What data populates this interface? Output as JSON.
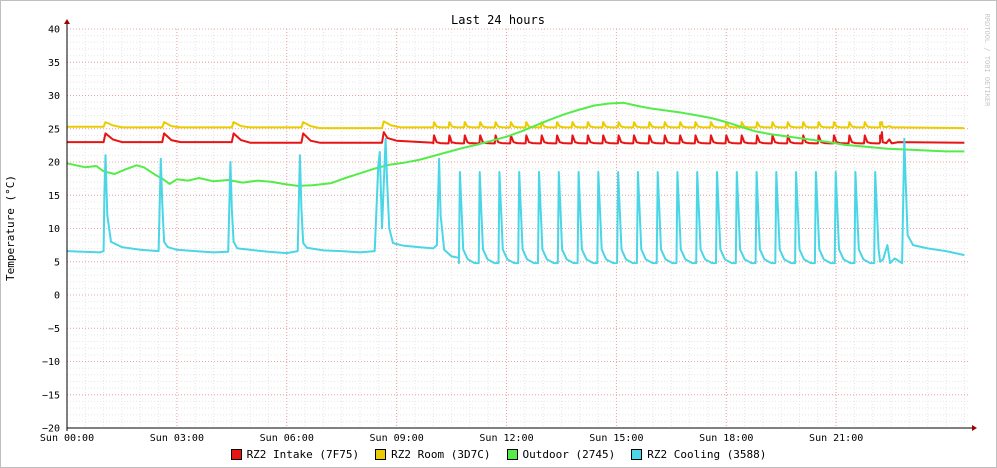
{
  "chart_data": {
    "type": "line",
    "title": "Last 24 hours",
    "ylabel": "Temperature (°C)",
    "watermark": "RRDTOOL / TOBI OETIKER",
    "ylim": [
      -20,
      40
    ],
    "yticks": [
      -20,
      -15,
      -10,
      -5,
      0,
      5,
      10,
      15,
      20,
      25,
      30,
      35,
      40
    ],
    "xlim": [
      0,
      24.6
    ],
    "xticks": [
      {
        "value": 0,
        "label": "Sun 00:00"
      },
      {
        "value": 3,
        "label": "Sun 03:00"
      },
      {
        "value": 6,
        "label": "Sun 06:00"
      },
      {
        "value": 9,
        "label": "Sun 09:00"
      },
      {
        "value": 12,
        "label": "Sun 12:00"
      },
      {
        "value": 15,
        "label": "Sun 15:00"
      },
      {
        "value": 18,
        "label": "Sun 18:00"
      },
      {
        "value": 21,
        "label": "Sun 21:00"
      }
    ],
    "grid": true,
    "legend_position": "bottom",
    "series": [
      {
        "name": "RZ2 Intake (7F75)",
        "color": "#e81313",
        "x": [
          0,
          1.0,
          1.05,
          1.25,
          1.5,
          2.6,
          2.65,
          2.85,
          3.1,
          4.5,
          4.55,
          4.75,
          5.0,
          6.4,
          6.45,
          6.65,
          6.9,
          8.6,
          8.65,
          8.75,
          9.0,
          10.0,
          10.5,
          11.0
        ],
        "values": [
          23.0,
          23.0,
          24.3,
          23.4,
          23.0,
          23.0,
          24.3,
          23.3,
          23.0,
          23.0,
          24.3,
          23.3,
          22.9,
          22.9,
          24.3,
          23.2,
          22.9,
          22.9,
          24.5,
          23.6,
          23.2,
          22.9,
          22.9,
          22.8
        ],
        "cycle": {
          "from": 10.0,
          "to": 22.2,
          "period": 0.42,
          "base": 22.8,
          "peak": 24.0
        },
        "tail": {
          "x": [
            22.2,
            22.25,
            22.45,
            22.7,
            24.5
          ],
          "values": [
            23.0,
            24.5,
            23.4,
            23.0,
            22.9
          ]
        }
      },
      {
        "name": "RZ2 Room (3D7C)",
        "color": "#eacc00",
        "x": [
          0,
          1.0,
          1.05,
          1.25,
          1.5,
          2.6,
          2.65,
          2.85,
          3.1,
          4.5,
          4.55,
          4.75,
          5.0,
          6.4,
          6.45,
          6.65,
          6.9,
          8.6,
          8.65,
          8.85,
          9.1,
          10.0
        ],
        "values": [
          25.3,
          25.3,
          26.0,
          25.5,
          25.2,
          25.2,
          26.0,
          25.4,
          25.2,
          25.2,
          26.0,
          25.4,
          25.2,
          25.2,
          26.0,
          25.4,
          25.1,
          25.1,
          26.1,
          25.5,
          25.2,
          25.2
        ],
        "cycle": {
          "from": 10.0,
          "to": 22.2,
          "period": 0.42,
          "base": 25.2,
          "peak": 26.0
        },
        "tail": {
          "x": [
            22.2,
            22.25,
            22.45,
            22.7,
            24.5
          ],
          "values": [
            25.2,
            26.0,
            25.4,
            25.2,
            25.1
          ]
        }
      },
      {
        "name": "Outdoor (2745)",
        "color": "#54ec48",
        "x": [
          0,
          0.5,
          0.8,
          1.0,
          1.3,
          1.6,
          1.9,
          2.1,
          2.4,
          2.6,
          2.8,
          3.0,
          3.3,
          3.6,
          4.0,
          4.4,
          4.8,
          5.2,
          5.6,
          5.9,
          6.3,
          6.7,
          7.2,
          7.6,
          8.0,
          8.4,
          8.8,
          9.2,
          9.6,
          10.0,
          10.4,
          10.8,
          11.2,
          11.6,
          12.0,
          12.4,
          12.8,
          13.2,
          13.6,
          14.0,
          14.4,
          14.8,
          15.2,
          15.6,
          16.0,
          16.4,
          16.8,
          17.2,
          17.6,
          18.0,
          18.4,
          18.8,
          19.2,
          19.6,
          20.0,
          20.4,
          20.8,
          21.2,
          21.6,
          22.0,
          22.4,
          22.8,
          23.2,
          23.6,
          24.0,
          24.5
        ],
        "values": [
          19.8,
          19.2,
          19.4,
          18.6,
          18.2,
          18.9,
          19.5,
          19.2,
          18.1,
          17.5,
          16.7,
          17.4,
          17.2,
          17.6,
          17.1,
          17.3,
          16.9,
          17.2,
          17.0,
          16.7,
          16.4,
          16.5,
          16.8,
          17.6,
          18.3,
          19.0,
          19.6,
          19.9,
          20.3,
          20.9,
          21.5,
          22.1,
          22.6,
          23.2,
          23.8,
          24.6,
          25.5,
          26.4,
          27.2,
          27.9,
          28.5,
          28.8,
          28.9,
          28.4,
          28.0,
          27.7,
          27.4,
          27.0,
          26.6,
          26.0,
          25.3,
          24.6,
          24.2,
          23.9,
          23.6,
          23.3,
          23.0,
          22.6,
          22.4,
          22.2,
          22.0,
          21.9,
          21.8,
          21.7,
          21.6,
          21.6
        ]
      },
      {
        "name": "RZ2 Cooling (3588)",
        "color": "#4ad6e6",
        "x": [
          0,
          0.9,
          1.0,
          1.02,
          1.05,
          1.1,
          1.2,
          1.5,
          2.0,
          2.5,
          2.56,
          2.6,
          2.65,
          2.75,
          3.0,
          3.5,
          4.0,
          4.4,
          4.46,
          4.5,
          4.55,
          4.65,
          5.0,
          5.5,
          6.0,
          6.3,
          6.36,
          6.4,
          6.45,
          6.55,
          7.0,
          7.5,
          8.0,
          8.4,
          8.5,
          8.54,
          8.6,
          8.7,
          8.74,
          8.8,
          8.9,
          9.2,
          9.6,
          10.0,
          10.1,
          10.16,
          10.2,
          10.3,
          10.5,
          10.7
        ],
        "values": [
          6.6,
          6.4,
          6.6,
          15.0,
          21.0,
          12.0,
          8.0,
          7.2,
          6.8,
          6.6,
          20.5,
          14.0,
          8.0,
          7.2,
          6.8,
          6.6,
          6.4,
          6.5,
          20.0,
          13.0,
          8.0,
          7.0,
          6.8,
          6.5,
          6.3,
          6.6,
          21.0,
          13.0,
          7.8,
          7.1,
          6.7,
          6.6,
          6.4,
          6.6,
          19.5,
          21.5,
          10.0,
          23.5,
          17.0,
          10.0,
          7.8,
          7.4,
          7.2,
          7.0,
          7.5,
          20.5,
          12.0,
          6.8,
          5.8,
          5.6
        ],
        "cycle": {
          "from": 10.7,
          "to": 22.2,
          "period": 0.54,
          "base": 4.8,
          "peak": 18.5
        },
        "tail": {
          "x": [
            22.2,
            22.4,
            22.6,
            22.8,
            22.86,
            22.9,
            22.95,
            23.1,
            23.5,
            24.0,
            24.5
          ],
          "values": [
            5.0,
            7.5,
            5.5,
            4.8,
            23.5,
            17.0,
            9.0,
            7.5,
            7.0,
            6.6,
            6.0
          ]
        }
      }
    ]
  }
}
